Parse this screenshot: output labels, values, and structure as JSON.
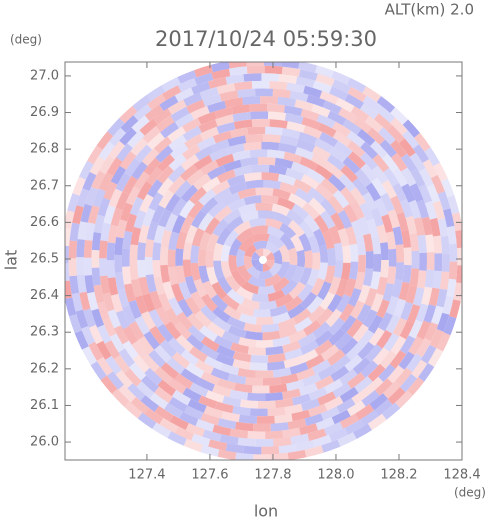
{
  "chart_data": {
    "type": "ppi",
    "title": "2017/10/24 05:59:30",
    "altitude_label": "ALT(km) 2.0",
    "xlabel": "lon",
    "ylabel": "lat",
    "x_unit": "(deg)",
    "y_unit": "(deg)",
    "xlim": [
      127.14,
      128.4
    ],
    "ylim": [
      25.951,
      27.038
    ],
    "xticks": [
      {
        "value": 127.4,
        "label": "127.4"
      },
      {
        "value": 127.6,
        "label": "127.6"
      },
      {
        "value": 127.8,
        "label": "127.8"
      },
      {
        "value": 128.0,
        "label": "128.0"
      },
      {
        "value": 128.2,
        "label": "128.2"
      },
      {
        "value": 128.4,
        "label": "128.4"
      }
    ],
    "yticks": [
      {
        "value": 26.0,
        "label": "26.0"
      },
      26.1,
      26.2,
      26.3,
      26.4,
      26.5,
      26.6,
      26.7,
      26.8,
      26.9,
      {
        "value": 27.0,
        "label": "27.0"
      }
    ],
    "colors": {
      "positive": "#f4a0a0",
      "negative": "#a8a8f0"
    }
  }
}
